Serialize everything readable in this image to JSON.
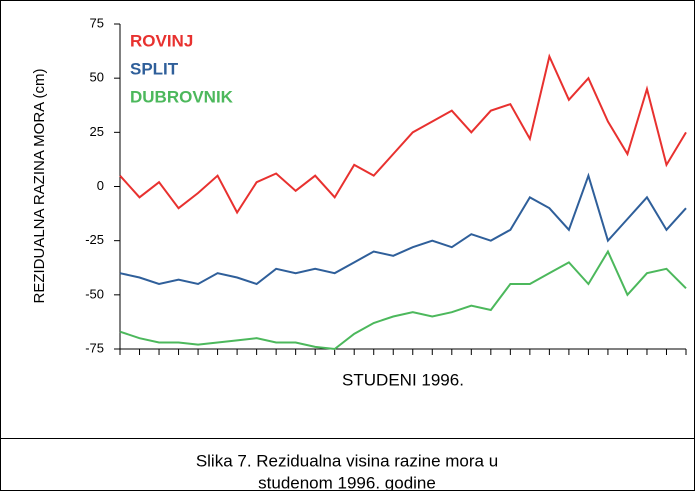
{
  "chart_data": {
    "type": "line",
    "y_label": "REZIDUALNA RAZINA MORA (cm)",
    "x_label": "STUDENI 1996.",
    "caption": [
      "Slika 7. Rezidualna visina razine mora u",
      "studenom 1996. godine"
    ],
    "categories": [
      null,
      null,
      null,
      null,
      null,
      null,
      null,
      null,
      null,
      null,
      null,
      null,
      null,
      null,
      null,
      null,
      null,
      null,
      null,
      null,
      null,
      null,
      null,
      null,
      null,
      null,
      null,
      null,
      null,
      null
    ],
    "series": [
      {
        "name": "ROVINJ",
        "color": "#e8312f",
        "values": [
          5,
          -5,
          2,
          -10,
          -3,
          5,
          -12,
          2,
          6,
          -2,
          5,
          -5,
          10,
          5,
          15,
          25,
          30,
          35,
          25,
          35,
          38,
          22,
          60,
          40,
          50,
          30,
          15,
          45,
          10,
          25
        ]
      },
      {
        "name": "SPLIT",
        "color": "#2f5f9a",
        "values": [
          -40,
          -42,
          -45,
          -43,
          -45,
          -40,
          -42,
          -45,
          -38,
          -40,
          -38,
          -40,
          -35,
          -30,
          -32,
          -28,
          -25,
          -28,
          -22,
          -25,
          -20,
          -5,
          -10,
          -20,
          5,
          -25,
          -15,
          -5,
          -20,
          -10
        ]
      },
      {
        "name": "DUBROVNIK",
        "color": "#4cb85c",
        "values": [
          -67,
          -70,
          -72,
          -72,
          -73,
          -72,
          -71,
          -70,
          -72,
          -72,
          -74,
          -75,
          -68,
          -63,
          -60,
          -58,
          -60,
          -58,
          -55,
          -57,
          -45,
          -45,
          -40,
          -35,
          -45,
          -30,
          -50,
          -40,
          -38,
          -47
        ]
      }
    ],
    "ylim": [
      -75,
      75
    ],
    "yticks": [
      -75,
      -50,
      -25,
      0,
      25,
      50,
      75
    ]
  }
}
